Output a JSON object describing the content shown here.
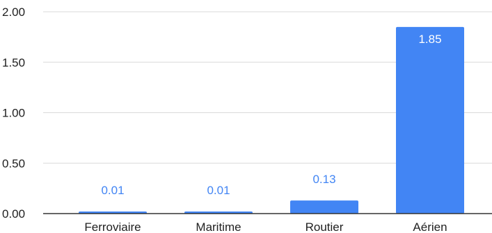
{
  "chart_data": {
    "type": "bar",
    "title": "",
    "xlabel": "",
    "ylabel": "",
    "categories": [
      "Ferroviaire",
      "Maritime",
      "Routier",
      "Aérien"
    ],
    "values": [
      0.01,
      0.01,
      0.13,
      1.85
    ],
    "value_labels": [
      "0.01",
      "0.01",
      "0.13",
      "1.85"
    ],
    "ylim": [
      0,
      2
    ],
    "yticks": [
      0,
      0.5,
      1,
      1.5,
      2
    ],
    "ytick_labels": [
      "0.00",
      "0.50",
      "1.00",
      "1.50",
      "2.00"
    ],
    "grid": true,
    "legend": "none",
    "colors": {
      "bar": "#4285f4",
      "label_outside": "#4285f4",
      "label_inside": "#ffffff"
    }
  }
}
